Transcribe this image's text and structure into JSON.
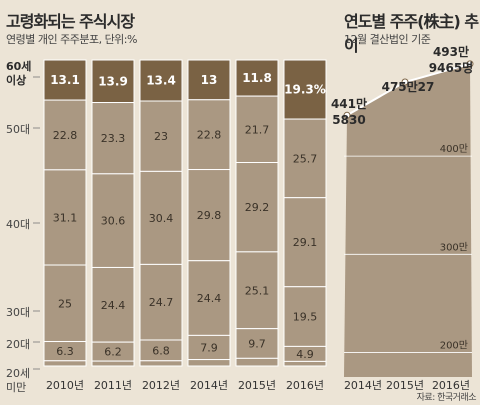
{
  "left": {
    "title": "고령화되는 주식시장",
    "subtitle": "연령별 개인 주주분포, 단위:%"
  },
  "right": {
    "title": "연도별 주주(株主) 추이",
    "subtitle": "12월 결산법인 기준"
  },
  "source": "자료: 한국거래소",
  "colors": {
    "background": "#ece4d6",
    "bar": "#aa9882",
    "bar_top": "#7a6244",
    "area": "#aa9882",
    "line": "#ffffff"
  },
  "chart_data": [
    {
      "type": "bar",
      "stacked": true,
      "percent": true,
      "categories": [
        "2010년",
        "2011년",
        "2012년",
        "2014년",
        "2015년",
        "2016년"
      ],
      "row_labels": [
        "60세 이상",
        "50대",
        "40대",
        "30대",
        "20대",
        "20세 미만"
      ],
      "series": [
        {
          "name": "20세 미만",
          "values": [
            null,
            null,
            null,
            null,
            null,
            null
          ]
        },
        {
          "name": "20대",
          "values": [
            6.3,
            6.2,
            6.8,
            7.9,
            9.7,
            4.9
          ]
        },
        {
          "name": "30대",
          "values": [
            25,
            24.4,
            24.7,
            24.4,
            25.1,
            19.5
          ]
        },
        {
          "name": "40대",
          "values": [
            31.1,
            30.6,
            30.4,
            29.8,
            29.2,
            29.1
          ]
        },
        {
          "name": "50대",
          "values": [
            22.8,
            23.3,
            23,
            22.8,
            21.7,
            25.7
          ]
        },
        {
          "name": "60세 이상",
          "values": [
            13.1,
            13.9,
            13.4,
            13,
            11.8,
            19.3
          ]
        }
      ],
      "top_labels": [
        "13.1",
        "13.9",
        "13.4",
        "13",
        "11.8",
        "19.3%"
      ],
      "ylim": [
        0,
        100
      ]
    },
    {
      "type": "area",
      "x": [
        "2014년",
        "2015년",
        "2016년"
      ],
      "values": [
        4415830,
        4755027,
        4939465
      ],
      "point_labels": [
        "441만\n5830",
        "475만27",
        "493만\n9465명"
      ],
      "gridlines": [
        {
          "value": 2000000,
          "label": "200만"
        },
        {
          "value": 3000000,
          "label": "300만"
        },
        {
          "value": 4000000,
          "label": "400만"
        }
      ],
      "ylim": [
        1750000,
        5000000
      ]
    }
  ]
}
